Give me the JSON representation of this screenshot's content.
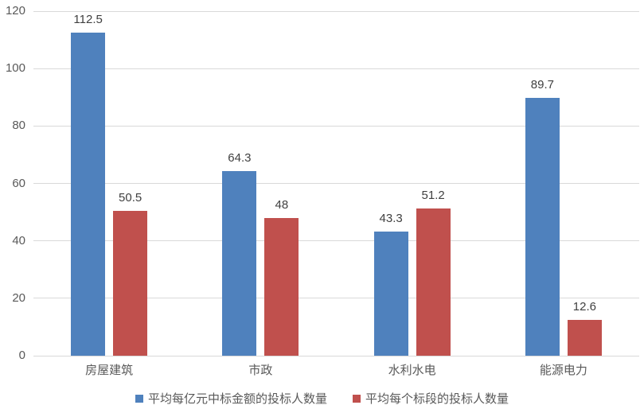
{
  "chart_data": {
    "type": "bar",
    "title": "",
    "xlabel": "",
    "ylabel": "",
    "categories": [
      "房屋建筑",
      "市政",
      "水利水电",
      "能源电力"
    ],
    "series": [
      {
        "name": "平均每亿元中标金额的投标人数量",
        "color": "#4F81BD",
        "values": [
          112.5,
          64.3,
          43.3,
          89.7
        ],
        "labels": [
          "112.5",
          "64.3",
          "43.3",
          "89.7"
        ]
      },
      {
        "name": "平均每个标段的投标人数量",
        "color": "#C0504D",
        "values": [
          50.5,
          48,
          51.2,
          12.6
        ],
        "labels": [
          "50.5",
          "48",
          "51.2",
          "12.6"
        ]
      }
    ],
    "ylim": [
      0,
      120
    ],
    "ytick_step": 20,
    "ytick_labels": [
      "0",
      "20",
      "40",
      "60",
      "80",
      "100",
      "120"
    ],
    "grid": true,
    "legend_position": "bottom"
  },
  "colors": {
    "gridline": "#D9D9D9",
    "axis_text": "#595959",
    "value_text": "#404040",
    "background": "#FFFFFF"
  }
}
